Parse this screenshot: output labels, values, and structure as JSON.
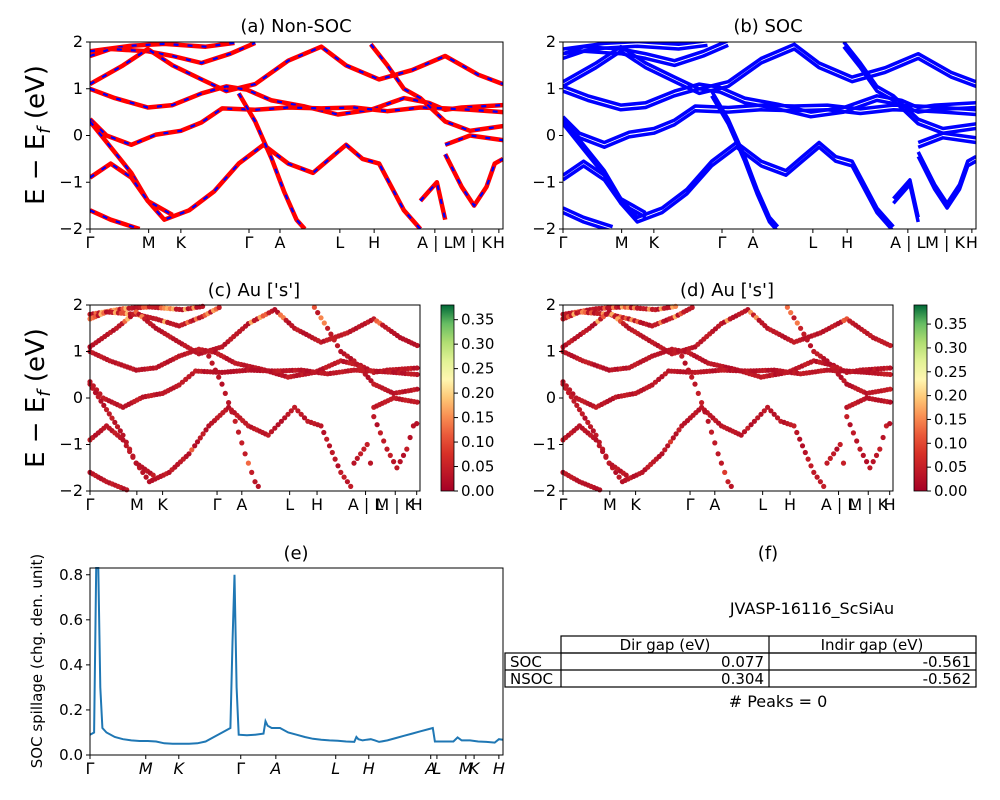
{
  "chart_data": [
    {
      "id": "a",
      "type": "line",
      "title": "(a) Non-SOC",
      "ylabel": "E − E_f (eV)",
      "ylim": [
        -2,
        2
      ],
      "yticks": [
        "2",
        "1",
        "0",
        "−1",
        "−2"
      ],
      "xticks": [
        "Γ",
        "M",
        "K",
        "Γ",
        "A",
        "L",
        "H",
        "A | L",
        "M | K",
        "H"
      ],
      "colors": {
        "spin_up": "#ff0000",
        "spin_down": "#0000ff"
      },
      "style": "red solid with blue dashes",
      "bands": [
        {
          "points": [
            [
              0,
              1.8
            ],
            [
              0.1,
              1.92
            ],
            [
              0.18,
              1.96
            ],
            [
              0.28,
              1.9
            ],
            [
              0.35,
              1.98
            ]
          ]
        },
        {
          "points": [
            [
              0,
              1.7
            ],
            [
              0.05,
              1.85
            ],
            [
              0.14,
              1.8
            ],
            [
              0.2,
              1.7
            ],
            [
              0.27,
              1.55
            ],
            [
              0.34,
              1.75
            ],
            [
              0.4,
              1.98
            ]
          ]
        },
        {
          "points": [
            [
              0,
              1.1
            ],
            [
              0.08,
              1.5
            ],
            [
              0.14,
              1.85
            ],
            [
              0.2,
              1.5
            ],
            [
              0.27,
              1.2
            ],
            [
              0.33,
              0.95
            ],
            [
              0.4,
              1.1
            ],
            [
              0.48,
              1.6
            ],
            [
              0.56,
              1.9
            ],
            [
              0.62,
              1.5
            ],
            [
              0.7,
              1.2
            ],
            [
              0.78,
              1.4
            ],
            [
              0.86,
              1.7
            ],
            [
              0.94,
              1.3
            ],
            [
              1.0,
              1.1
            ]
          ]
        },
        {
          "points": [
            [
              0,
              1.0
            ],
            [
              0.06,
              0.8
            ],
            [
              0.14,
              0.6
            ],
            [
              0.2,
              0.65
            ],
            [
              0.27,
              0.9
            ],
            [
              0.33,
              1.05
            ],
            [
              0.38,
              0.98
            ],
            [
              0.44,
              0.75
            ],
            [
              0.52,
              0.62
            ],
            [
              0.6,
              0.45
            ],
            [
              0.68,
              0.55
            ],
            [
              0.76,
              0.8
            ],
            [
              0.82,
              0.7
            ],
            [
              0.86,
              0.55
            ],
            [
              0.9,
              0.6
            ],
            [
              1.0,
              0.65
            ]
          ]
        },
        {
          "points": [
            [
              0,
              0.35
            ],
            [
              0.04,
              0.0
            ],
            [
              0.1,
              -0.2
            ],
            [
              0.16,
              0.02
            ],
            [
              0.22,
              0.1
            ],
            [
              0.27,
              0.28
            ],
            [
              0.32,
              0.58
            ],
            [
              0.4,
              0.55
            ],
            [
              0.48,
              0.6
            ],
            [
              0.56,
              0.58
            ],
            [
              0.64,
              0.6
            ],
            [
              0.72,
              0.52
            ],
            [
              0.8,
              0.6
            ],
            [
              0.86,
              0.58
            ],
            [
              0.92,
              0.55
            ],
            [
              1.0,
              0.5
            ]
          ]
        },
        {
          "points": [
            [
              0,
              0.3
            ],
            [
              0.05,
              -0.25
            ],
            [
              0.1,
              -0.8
            ],
            [
              0.14,
              -1.4
            ],
            [
              0.18,
              -1.8
            ],
            [
              0.24,
              -1.6
            ],
            [
              0.3,
              -1.2
            ],
            [
              0.36,
              -0.6
            ],
            [
              0.42,
              -0.2
            ],
            [
              0.48,
              -0.6
            ],
            [
              0.54,
              -0.8
            ],
            [
              0.58,
              -0.5
            ],
            [
              0.62,
              -0.2
            ],
            [
              0.66,
              -0.5
            ],
            [
              0.7,
              -0.6
            ],
            [
              0.76,
              -1.6
            ],
            [
              0.8,
              -2.0
            ]
          ]
        },
        {
          "points": [
            [
              0.36,
              0.9
            ],
            [
              0.4,
              0.3
            ],
            [
              0.44,
              -0.5
            ],
            [
              0.47,
              -1.2
            ],
            [
              0.5,
              -1.8
            ],
            [
              0.52,
              -2.0
            ]
          ]
        },
        {
          "points": [
            [
              0,
              -0.9
            ],
            [
              0.05,
              -0.6
            ],
            [
              0.1,
              -0.9
            ],
            [
              0.14,
              -1.4
            ],
            [
              0.2,
              -1.7
            ]
          ]
        },
        {
          "points": [
            [
              0,
              -1.6
            ],
            [
              0.05,
              -1.8
            ],
            [
              0.12,
              -2.0
            ]
          ]
        },
        {
          "points": [
            [
              0.86,
              -0.4
            ],
            [
              0.9,
              -1.1
            ],
            [
              0.93,
              -1.5
            ],
            [
              0.96,
              -1.1
            ],
            [
              0.98,
              -0.6
            ],
            [
              1.0,
              -0.5
            ]
          ]
        },
        {
          "points": [
            [
              0.8,
              -1.4
            ],
            [
              0.84,
              -1.0
            ],
            [
              0.86,
              -1.8
            ]
          ]
        },
        {
          "points": [
            [
              0.68,
              1.95
            ],
            [
              0.72,
              1.5
            ],
            [
              0.76,
              1.0
            ],
            [
              0.8,
              0.8
            ],
            [
              0.86,
              0.3
            ],
            [
              0.92,
              0.1
            ],
            [
              1.0,
              0.2
            ]
          ]
        },
        {
          "points": [
            [
              0.86,
              -0.2
            ],
            [
              0.92,
              0.0
            ],
            [
              1.0,
              -0.1
            ]
          ]
        }
      ]
    },
    {
      "id": "b",
      "type": "line",
      "title": "(b) SOC",
      "ylim": [
        -2,
        2
      ],
      "yticks": [
        "2",
        "1",
        "0",
        "−1",
        "−2"
      ],
      "xticks": [
        "Γ",
        "M",
        "K",
        "Γ",
        "A",
        "L",
        "H",
        "A | L",
        "M | K",
        "H"
      ],
      "colors": {
        "bands": "#0000ff"
      }
    },
    {
      "id": "c",
      "type": "scatter",
      "title": "(c)  Au ['s']",
      "ylabel": "E − E_f (eV)",
      "ylim": [
        -2,
        2
      ],
      "yticks": [
        "2",
        "1",
        "0",
        "−1",
        "−2"
      ],
      "xticks": [
        "Γ",
        "M",
        "K",
        "Γ",
        "A",
        "L",
        "H",
        "A | L",
        "M | K",
        "H"
      ],
      "colorbar": {
        "ticks": [
          "0.35",
          "0.30",
          "0.25",
          "0.20",
          "0.15",
          "0.10",
          "0.05",
          "0.00"
        ],
        "range": [
          0,
          0.38
        ],
        "colormap": "RdYlGn"
      }
    },
    {
      "id": "d",
      "type": "scatter",
      "title": "(d) Au ['s']",
      "ylim": [
        -2,
        2
      ],
      "yticks": [
        "2",
        "1",
        "0",
        "−1",
        "−2"
      ],
      "xticks": [
        "Γ",
        "M",
        "K",
        "Γ",
        "A",
        "L",
        "H",
        "A | L",
        "M | K",
        "H"
      ],
      "colorbar": {
        "ticks": [
          "0.35",
          "0.30",
          "0.25",
          "0.20",
          "0.15",
          "0.10",
          "0.05",
          "0.00"
        ],
        "range": [
          0,
          0.39
        ],
        "colormap": "RdYlGn"
      }
    },
    {
      "id": "e",
      "type": "line",
      "title": "(e)",
      "ylabel": "SOC spillage (chg. den. unit)",
      "ylim": [
        0,
        0.83
      ],
      "yticks": [
        "0.8",
        "0.6",
        "0.4",
        "0.2",
        "0.0"
      ],
      "xticks": [
        "Γ",
        "M",
        "K",
        "Γ",
        "A",
        "L",
        "H",
        "A",
        "L",
        "M",
        "K",
        "H"
      ],
      "color": "#1f77b4",
      "series": [
        {
          "x": [
            0,
            0.01,
            0.015,
            0.02,
            0.025,
            0.03,
            0.04,
            0.06,
            0.08,
            0.1,
            0.12,
            0.14,
            0.16,
            0.18,
            0.2,
            0.22,
            0.24,
            0.26,
            0.28,
            0.3,
            0.32,
            0.34,
            0.345,
            0.35,
            0.355,
            0.36,
            0.38,
            0.4,
            0.42,
            0.425,
            0.43,
            0.44,
            0.46,
            0.48,
            0.5,
            0.52,
            0.54,
            0.56,
            0.58,
            0.6,
            0.62,
            0.64,
            0.645,
            0.65,
            0.66,
            0.67,
            0.68,
            0.69,
            0.7,
            0.72,
            0.74,
            0.76,
            0.78,
            0.8,
            0.82,
            0.83,
            0.835,
            0.84,
            0.86,
            0.88,
            0.89,
            0.9,
            0.92,
            0.94,
            0.96,
            0.98,
            0.99,
            1.0
          ],
          "values": [
            0.09,
            0.1,
            0.83,
            0.83,
            0.3,
            0.12,
            0.1,
            0.08,
            0.07,
            0.065,
            0.062,
            0.062,
            0.06,
            0.052,
            0.05,
            0.05,
            0.05,
            0.052,
            0.06,
            0.08,
            0.1,
            0.12,
            0.5,
            0.8,
            0.3,
            0.09,
            0.088,
            0.09,
            0.095,
            0.15,
            0.13,
            0.12,
            0.12,
            0.1,
            0.09,
            0.08,
            0.072,
            0.068,
            0.065,
            0.063,
            0.06,
            0.058,
            0.08,
            0.07,
            0.065,
            0.068,
            0.07,
            0.065,
            0.058,
            0.065,
            0.075,
            0.085,
            0.095,
            0.105,
            0.115,
            0.12,
            0.06,
            0.06,
            0.06,
            0.06,
            0.078,
            0.065,
            0.065,
            0.06,
            0.058,
            0.055,
            0.07,
            0.068
          ]
        }
      ]
    }
  ],
  "panel_f": {
    "title": "(f)",
    "material": "JVASP-16116_ScSiAu",
    "table": {
      "headers": [
        "",
        "Dir gap (eV)",
        "Indir gap (eV)"
      ],
      "rows": [
        [
          "SOC",
          "0.077",
          "-0.561"
        ],
        [
          "NSOC",
          "0.304",
          "-0.562"
        ]
      ]
    },
    "peaks": "# Peaks = 0"
  }
}
